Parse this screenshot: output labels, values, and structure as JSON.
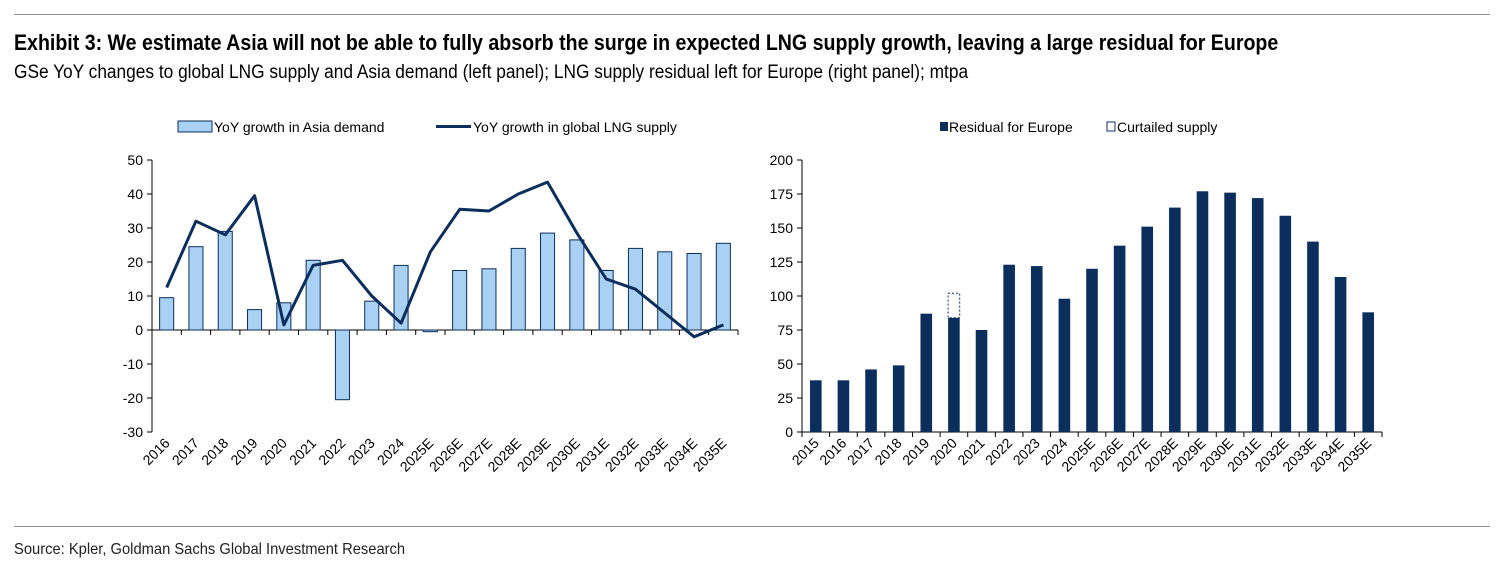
{
  "header": {
    "title": "Exhibit 3: We estimate Asia will not be able to fully absorb the surge in expected LNG supply growth, leaving a large residual for Europe",
    "subtitle": "GSe YoY changes to global LNG supply and Asia demand (left panel); LNG supply residual left for Europe (right panel); mtpa"
  },
  "footer": {
    "source": "Source: Kpler, Goldman Sachs Global Investment Research"
  },
  "colors": {
    "bar_light": "#a9d1f3",
    "navy": "#0c2e5c",
    "outline": "#0c2e5c",
    "axis": "#000000"
  },
  "chart_data": [
    {
      "type": "bar",
      "categories": [
        "2016",
        "2017",
        "2018",
        "2019",
        "2020",
        "2021",
        "2022",
        "2023",
        "2024",
        "2025E",
        "2026E",
        "2027E",
        "2028E",
        "2029E",
        "2030E",
        "2031E",
        "2032E",
        "2033E",
        "2034E",
        "2035E"
      ],
      "series": [
        {
          "name": "YoY growth in Asia demand",
          "type": "bar",
          "values": [
            9.5,
            24.5,
            29,
            6,
            8,
            20.5,
            -20.5,
            8.5,
            19,
            -0.5,
            17.5,
            18,
            24,
            28.5,
            26.5,
            17.5,
            24,
            23,
            22.5,
            25.5
          ]
        },
        {
          "name": "YoY growth in global LNG supply",
          "type": "line",
          "values": [
            12.5,
            32,
            28,
            39.5,
            1.5,
            19,
            20.5,
            10,
            2,
            23,
            35.5,
            35,
            40,
            43.5,
            28.5,
            15,
            12,
            5,
            -2,
            1.5
          ]
        }
      ],
      "ylim": [
        -30,
        50
      ],
      "yticks": [
        -30,
        -20,
        -10,
        0,
        10,
        20,
        30,
        40,
        50
      ],
      "legend_position": "top"
    },
    {
      "type": "bar",
      "stacked": true,
      "categories": [
        "2015",
        "2016",
        "2017",
        "2018",
        "2019",
        "2020",
        "2021",
        "2022",
        "2023",
        "2024",
        "2025E",
        "2026E",
        "2027E",
        "2028E",
        "2029E",
        "2030E",
        "2031E",
        "2032E",
        "2033E",
        "2034E",
        "2035E"
      ],
      "series": [
        {
          "name": "Residual for Europe",
          "values": [
            38,
            38,
            46,
            49,
            87,
            84,
            75,
            123,
            122,
            98,
            120,
            137,
            151,
            165,
            177,
            176,
            172,
            159,
            140,
            114,
            88
          ]
        },
        {
          "name": "Curtailed supply",
          "values": [
            0,
            0,
            0,
            0,
            0,
            18,
            0,
            0,
            0,
            0,
            0,
            0,
            0,
            0,
            0,
            0,
            0,
            0,
            0,
            0,
            0
          ]
        }
      ],
      "ylim": [
        0,
        200
      ],
      "yticks": [
        0,
        25,
        50,
        75,
        100,
        125,
        150,
        175,
        200
      ],
      "legend_position": "top"
    }
  ]
}
